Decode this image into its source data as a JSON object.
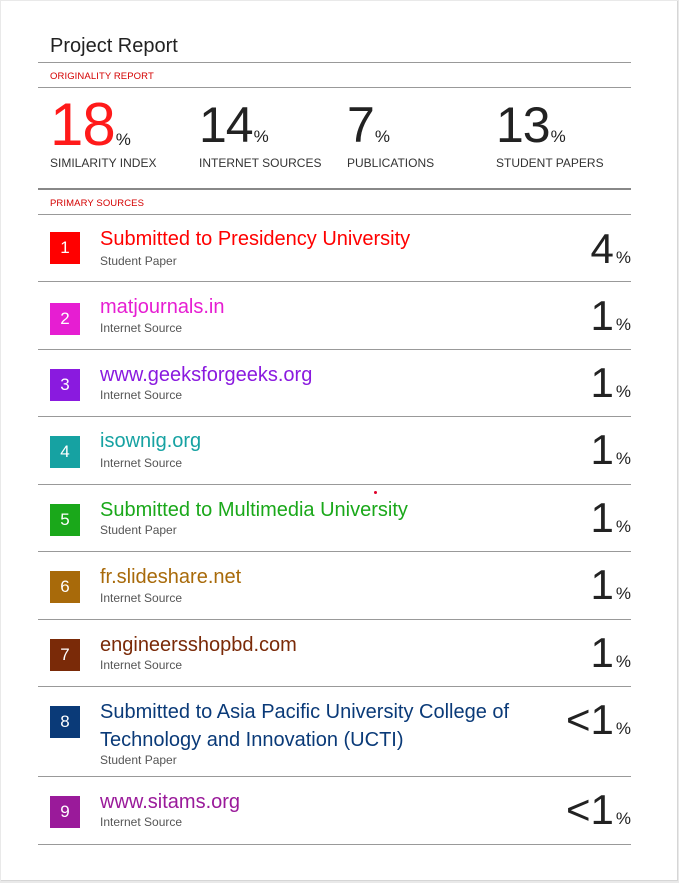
{
  "report": {
    "title": "Project Report",
    "originality_label": "ORIGINALITY REPORT",
    "primary_sources_label": "PRIMARY SOURCES"
  },
  "stats": [
    {
      "value": "18",
      "unit": "%",
      "label": "SIMILARITY INDEX"
    },
    {
      "value": "14",
      "unit": "%",
      "label": "INTERNET SOURCES"
    },
    {
      "value": "7",
      "unit": "%",
      "label": "PUBLICATIONS"
    },
    {
      "value": "13",
      "unit": "%",
      "label": "STUDENT PAPERS"
    }
  ],
  "sources": [
    {
      "rank": "1",
      "title": "Submitted to Presidency University",
      "type": "Student Paper",
      "percent": "4",
      "unit": "%",
      "color": "#ff0000"
    },
    {
      "rank": "2",
      "title": "matjournals.in",
      "type": "Internet Source",
      "percent": "1",
      "unit": "%",
      "color": "#e61ed2"
    },
    {
      "rank": "3",
      "title": "www.geeksforgeeks.org",
      "type": "Internet Source",
      "percent": "1",
      "unit": "%",
      "color": "#8a1adf"
    },
    {
      "rank": "4",
      "title": "isownig.org",
      "type": "Internet Source",
      "percent": "1",
      "unit": "%",
      "color": "#16a2a2"
    },
    {
      "rank": "5",
      "title": "Submitted to Multimedia University",
      "type": "Student Paper",
      "percent": "1",
      "unit": "%",
      "color": "#1aa81a"
    },
    {
      "rank": "6",
      "title": "fr.slideshare.net",
      "type": "Internet Source",
      "percent": "1",
      "unit": "%",
      "color": "#a86a0a"
    },
    {
      "rank": "7",
      "title": "engineersshopbd.com",
      "type": "Internet Source",
      "percent": "1",
      "unit": "%",
      "color": "#7a2a08"
    },
    {
      "rank": "8",
      "title": "Submitted to Asia Pacific University College of Technology and Innovation (UCTI)",
      "type": "Student Paper",
      "percent": "<1",
      "unit": "%",
      "color": "#0a3a78"
    },
    {
      "rank": "9",
      "title": "www.sitams.org",
      "type": "Internet Source",
      "percent": "<1",
      "unit": "%",
      "color": "#9a1a9a"
    }
  ]
}
